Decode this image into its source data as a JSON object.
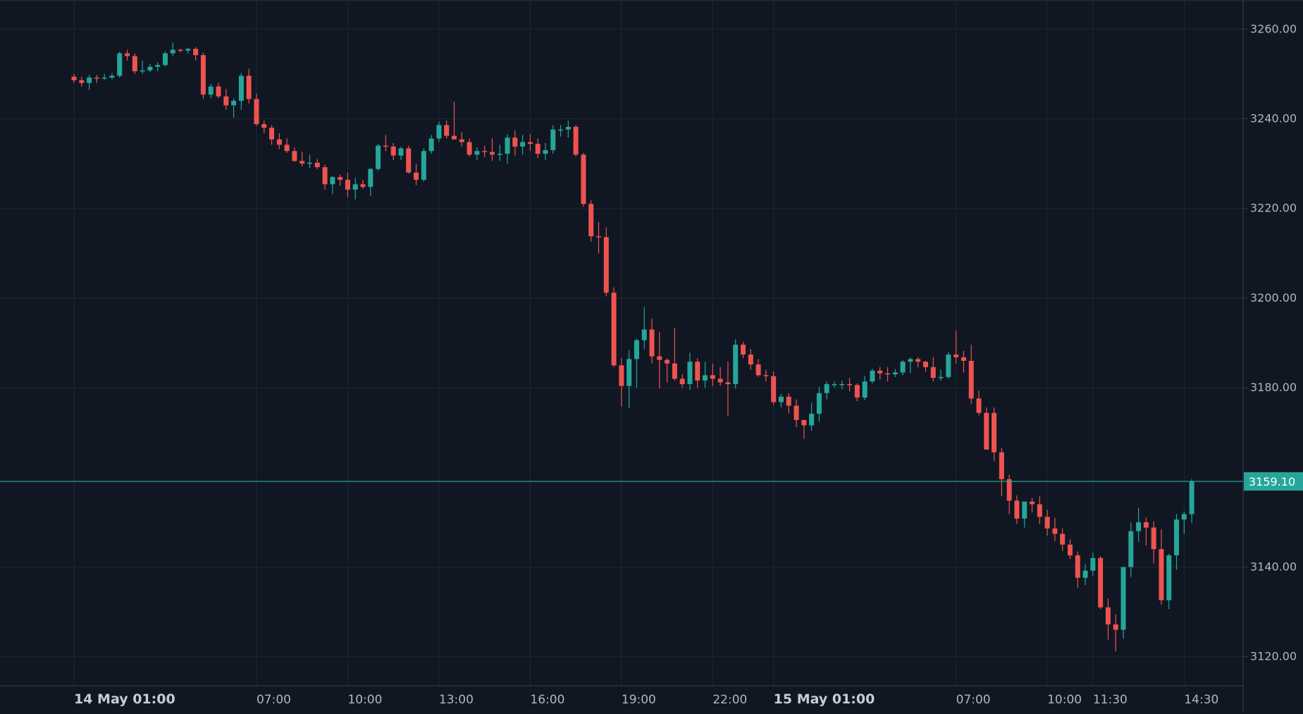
{
  "chart_data": {
    "type": "candlestick",
    "title": "",
    "xlabel": "",
    "ylabel": "",
    "interval_minutes": 15,
    "x_start": "14 May 01:00",
    "y_ticks": [
      "3260.00",
      "3240.00",
      "3220.00",
      "3200.00",
      "3180.00",
      "3140.00",
      "3120.00"
    ],
    "y_range": [
      3113.5,
      3266.5
    ],
    "x_ticks": [
      {
        "label": "14 May 01:00",
        "bold": true,
        "bar": 0
      },
      {
        "label": "07:00",
        "bold": false,
        "bar": 24
      },
      {
        "label": "10:00",
        "bold": false,
        "bar": 36
      },
      {
        "label": "13:00",
        "bold": false,
        "bar": 48
      },
      {
        "label": "16:00",
        "bold": false,
        "bar": 60
      },
      {
        "label": "19:00",
        "bold": false,
        "bar": 72
      },
      {
        "label": "22:00",
        "bold": false,
        "bar": 84
      },
      {
        "label": "15 May 01:00",
        "bold": true,
        "bar": 92
      },
      {
        "label": "07:00",
        "bold": false,
        "bar": 116
      },
      {
        "label": "10:00",
        "bold": false,
        "bar": 128
      },
      {
        "label": "11:30",
        "bold": false,
        "bar": 134
      },
      {
        "label": "14:30",
        "bold": false,
        "bar": 146
      }
    ],
    "last_price": 3159.1,
    "last_price_label": "3159.10",
    "colors": {
      "up": "#26a69a",
      "down": "#ef5350",
      "background": "#101722",
      "grid": "#1f2733",
      "text": "#b2b5be"
    },
    "candles": [
      [
        3249.4,
        3250.0,
        3248.0,
        3248.6
      ],
      [
        3248.6,
        3249.4,
        3247.2,
        3248.0
      ],
      [
        3248.0,
        3249.8,
        3246.4,
        3249.2
      ],
      [
        3249.2,
        3249.8,
        3248.0,
        3249.0
      ],
      [
        3249.0,
        3250.0,
        3248.6,
        3249.2
      ],
      [
        3249.2,
        3250.2,
        3248.8,
        3249.6
      ],
      [
        3249.6,
        3255.0,
        3249.2,
        3254.6
      ],
      [
        3254.6,
        3255.4,
        3253.0,
        3254.0
      ],
      [
        3254.0,
        3254.6,
        3250.0,
        3250.6
      ],
      [
        3250.6,
        3253.0,
        3250.0,
        3250.8
      ],
      [
        3250.8,
        3252.2,
        3250.4,
        3251.6
      ],
      [
        3251.6,
        3252.6,
        3250.6,
        3252.0
      ],
      [
        3252.0,
        3255.0,
        3251.6,
        3254.6
      ],
      [
        3254.6,
        3257.0,
        3254.0,
        3255.4
      ],
      [
        3255.4,
        3255.6,
        3254.8,
        3255.2
      ],
      [
        3255.2,
        3255.8,
        3254.6,
        3255.6
      ],
      [
        3255.6,
        3256.0,
        3253.0,
        3254.2
      ],
      [
        3254.2,
        3254.8,
        3244.4,
        3245.4
      ],
      [
        3245.4,
        3247.8,
        3244.6,
        3247.2
      ],
      [
        3247.2,
        3248.0,
        3244.6,
        3245.0
      ],
      [
        3245.0,
        3246.6,
        3242.0,
        3243.0
      ],
      [
        3243.0,
        3244.6,
        3240.2,
        3244.0
      ],
      [
        3244.0,
        3250.2,
        3242.0,
        3249.6
      ],
      [
        3249.6,
        3251.2,
        3243.4,
        3244.4
      ],
      [
        3244.4,
        3245.6,
        3238.4,
        3238.8
      ],
      [
        3238.8,
        3239.6,
        3236.8,
        3238.0
      ],
      [
        3238.0,
        3238.6,
        3234.2,
        3235.4
      ],
      [
        3235.4,
        3236.8,
        3233.2,
        3234.2
      ],
      [
        3234.2,
        3235.6,
        3232.4,
        3232.8
      ],
      [
        3232.8,
        3233.6,
        3230.4,
        3230.6
      ],
      [
        3230.6,
        3232.6,
        3229.4,
        3230.0
      ],
      [
        3230.0,
        3232.0,
        3229.0,
        3230.2
      ],
      [
        3230.2,
        3231.0,
        3228.8,
        3229.2
      ],
      [
        3229.2,
        3229.8,
        3224.2,
        3225.4
      ],
      [
        3225.4,
        3227.2,
        3223.2,
        3227.0
      ],
      [
        3227.0,
        3227.6,
        3225.0,
        3226.4
      ],
      [
        3226.4,
        3228.0,
        3222.6,
        3224.2
      ],
      [
        3224.2,
        3226.8,
        3222.0,
        3225.4
      ],
      [
        3225.4,
        3226.4,
        3224.4,
        3224.8
      ],
      [
        3224.8,
        3229.0,
        3222.8,
        3228.8
      ],
      [
        3228.8,
        3234.4,
        3228.4,
        3234.0
      ],
      [
        3234.0,
        3236.4,
        3232.8,
        3233.8
      ],
      [
        3233.8,
        3234.6,
        3230.8,
        3231.8
      ],
      [
        3231.8,
        3233.8,
        3230.8,
        3233.4
      ],
      [
        3233.4,
        3234.0,
        3227.8,
        3228.0
      ],
      [
        3228.0,
        3230.0,
        3225.2,
        3226.4
      ],
      [
        3226.4,
        3233.4,
        3226.0,
        3232.8
      ],
      [
        3232.8,
        3236.4,
        3232.2,
        3235.6
      ],
      [
        3235.6,
        3239.4,
        3234.8,
        3238.6
      ],
      [
        3238.6,
        3239.6,
        3235.6,
        3236.2
      ],
      [
        3236.2,
        3243.8,
        3235.6,
        3235.4
      ],
      [
        3235.4,
        3237.0,
        3233.8,
        3234.8
      ],
      [
        3234.8,
        3235.6,
        3231.6,
        3232.0
      ],
      [
        3232.0,
        3233.6,
        3230.8,
        3232.8
      ],
      [
        3232.8,
        3234.0,
        3231.4,
        3232.6
      ],
      [
        3232.6,
        3235.6,
        3230.6,
        3232.0
      ],
      [
        3232.0,
        3234.2,
        3230.6,
        3232.2
      ],
      [
        3232.2,
        3236.6,
        3230.0,
        3235.8
      ],
      [
        3235.8,
        3237.4,
        3231.8,
        3233.8
      ],
      [
        3233.8,
        3236.4,
        3232.0,
        3234.8
      ],
      [
        3234.8,
        3236.6,
        3232.8,
        3234.4
      ],
      [
        3234.4,
        3235.6,
        3231.2,
        3232.2
      ],
      [
        3232.2,
        3234.6,
        3230.8,
        3233.0
      ],
      [
        3233.0,
        3238.6,
        3232.2,
        3237.6
      ],
      [
        3237.6,
        3238.6,
        3236.0,
        3237.6
      ],
      [
        3237.6,
        3239.6,
        3235.8,
        3238.2
      ],
      [
        3238.2,
        3238.6,
        3231.6,
        3232.0
      ],
      [
        3232.0,
        3232.4,
        3220.4,
        3221.0
      ],
      [
        3221.0,
        3221.8,
        3212.6,
        3213.8
      ],
      [
        3213.8,
        3217.0,
        3210.0,
        3213.6
      ],
      [
        3213.6,
        3215.8,
        3200.4,
        3201.2
      ],
      [
        3201.2,
        3202.4,
        3184.6,
        3185.0
      ],
      [
        3185.0,
        3186.6,
        3175.8,
        3180.4
      ],
      [
        3180.4,
        3188.4,
        3175.4,
        3186.4
      ],
      [
        3186.4,
        3191.0,
        3180.0,
        3190.6
      ],
      [
        3190.6,
        3198.0,
        3188.6,
        3193.0
      ],
      [
        3193.0,
        3195.4,
        3185.4,
        3187.0
      ],
      [
        3187.0,
        3192.4,
        3179.8,
        3186.2
      ],
      [
        3186.2,
        3186.6,
        3181.2,
        3185.4
      ],
      [
        3185.4,
        3193.4,
        3181.6,
        3182.0
      ],
      [
        3182.0,
        3183.0,
        3180.0,
        3180.8
      ],
      [
        3180.8,
        3187.8,
        3179.6,
        3185.8
      ],
      [
        3185.8,
        3186.6,
        3180.0,
        3181.6
      ],
      [
        3181.6,
        3185.8,
        3180.0,
        3182.8
      ],
      [
        3182.8,
        3185.4,
        3180.4,
        3182.0
      ],
      [
        3182.0,
        3184.6,
        3180.4,
        3181.2
      ],
      [
        3181.2,
        3185.8,
        3173.8,
        3180.8
      ],
      [
        3180.8,
        3190.8,
        3179.8,
        3189.6
      ],
      [
        3189.6,
        3190.2,
        3186.6,
        3187.4
      ],
      [
        3187.4,
        3188.6,
        3184.0,
        3185.2
      ],
      [
        3185.2,
        3186.4,
        3182.4,
        3182.8
      ],
      [
        3182.8,
        3184.0,
        3181.4,
        3182.6
      ],
      [
        3182.6,
        3183.6,
        3176.2,
        3176.8
      ],
      [
        3176.8,
        3178.6,
        3175.6,
        3178.0
      ],
      [
        3178.0,
        3178.8,
        3174.2,
        3176.0
      ],
      [
        3176.0,
        3177.4,
        3171.2,
        3172.8
      ],
      [
        3172.8,
        3172.8,
        3168.6,
        3171.6
      ],
      [
        3171.6,
        3176.6,
        3170.4,
        3174.2
      ],
      [
        3174.2,
        3180.2,
        3172.4,
        3178.8
      ],
      [
        3178.8,
        3181.4,
        3177.4,
        3180.8
      ],
      [
        3180.8,
        3181.4,
        3180.0,
        3180.8
      ],
      [
        3180.8,
        3181.6,
        3179.6,
        3180.8
      ],
      [
        3180.8,
        3182.2,
        3179.2,
        3180.6
      ],
      [
        3180.6,
        3181.0,
        3177.0,
        3177.8
      ],
      [
        3177.8,
        3182.6,
        3177.2,
        3181.4
      ],
      [
        3181.4,
        3184.2,
        3181.0,
        3183.8
      ],
      [
        3183.8,
        3184.6,
        3181.8,
        3183.2
      ],
      [
        3183.2,
        3184.6,
        3181.4,
        3183.0
      ],
      [
        3183.0,
        3184.2,
        3182.4,
        3183.4
      ],
      [
        3183.4,
        3186.2,
        3182.8,
        3185.8
      ],
      [
        3185.8,
        3186.8,
        3183.2,
        3186.4
      ],
      [
        3186.4,
        3186.8,
        3184.6,
        3185.8
      ],
      [
        3185.8,
        3186.0,
        3183.6,
        3184.6
      ],
      [
        3184.6,
        3186.8,
        3181.4,
        3182.2
      ],
      [
        3182.2,
        3184.0,
        3181.6,
        3182.4
      ],
      [
        3182.4,
        3188.0,
        3182.0,
        3187.4
      ],
      [
        3187.4,
        3192.8,
        3185.4,
        3186.8
      ],
      [
        3186.8,
        3188.2,
        3183.4,
        3186.0
      ],
      [
        3186.0,
        3189.6,
        3176.4,
        3177.6
      ],
      [
        3177.6,
        3179.4,
        3173.8,
        3174.4
      ],
      [
        3174.4,
        3175.6,
        3167.6,
        3166.2
      ],
      [
        3174.4,
        3175.6,
        3163.6,
        3165.6
      ],
      [
        3165.6,
        3166.6,
        3155.8,
        3159.6
      ],
      [
        3159.6,
        3160.6,
        3151.8,
        3154.8
      ],
      [
        3154.8,
        3156.0,
        3149.6,
        3150.8
      ],
      [
        3150.8,
        3154.6,
        3148.8,
        3154.6
      ],
      [
        3154.6,
        3155.4,
        3152.2,
        3154.0
      ],
      [
        3154.0,
        3155.8,
        3149.6,
        3151.2
      ],
      [
        3151.2,
        3152.8,
        3147.0,
        3148.6
      ],
      [
        3148.6,
        3151.0,
        3145.8,
        3147.4
      ],
      [
        3147.4,
        3148.6,
        3143.6,
        3145.0
      ],
      [
        3145.0,
        3146.2,
        3141.8,
        3142.6
      ],
      [
        3142.6,
        3143.4,
        3135.4,
        3137.6
      ],
      [
        3137.6,
        3140.6,
        3136.0,
        3139.2
      ],
      [
        3139.2,
        3143.2,
        3138.0,
        3142.0
      ],
      [
        3142.0,
        3142.4,
        3130.6,
        3131.0
      ],
      [
        3131.0,
        3133.0,
        3123.8,
        3127.2
      ],
      [
        3127.2,
        3129.4,
        3121.2,
        3126.0
      ],
      [
        3126.0,
        3140.0,
        3124.0,
        3140.0
      ],
      [
        3140.0,
        3150.0,
        3137.8,
        3148.0
      ],
      [
        3148.0,
        3153.2,
        3145.6,
        3150.0
      ],
      [
        3150.0,
        3151.0,
        3144.8,
        3148.8
      ],
      [
        3148.8,
        3150.2,
        3140.8,
        3144.0
      ],
      [
        3144.0,
        3148.4,
        3131.6,
        3132.6
      ],
      [
        3132.6,
        3143.0,
        3130.6,
        3142.6
      ],
      [
        3142.6,
        3151.8,
        3139.4,
        3150.6
      ],
      [
        3150.6,
        3152.4,
        3147.4,
        3151.8
      ],
      [
        3151.8,
        3159.6,
        3149.8,
        3159.1
      ]
    ]
  }
}
